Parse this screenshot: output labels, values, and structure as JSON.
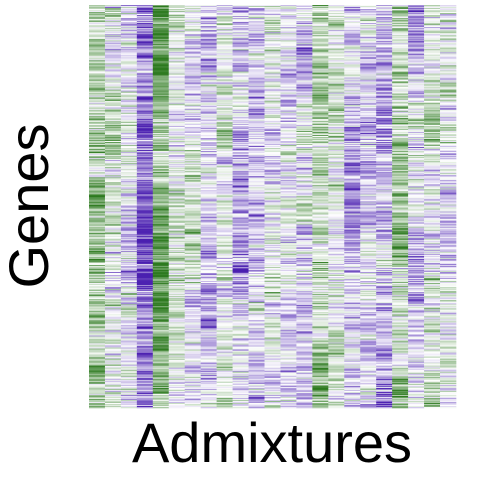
{
  "chart_data": {
    "type": "heatmap",
    "xlabel": "Admixtures",
    "ylabel": "Genes",
    "columns": 23,
    "rows": 400,
    "column_means": [
      -0.35,
      -0.15,
      0.05,
      0.7,
      -0.55,
      -0.1,
      -0.05,
      0.2,
      -0.05,
      0.3,
      0.25,
      0.0,
      0.1,
      0.15,
      -0.3,
      0.0,
      0.3,
      0.2,
      0.35,
      -0.35,
      0.25,
      -0.15,
      0.05
    ],
    "column_spread": [
      0.55,
      0.6,
      0.55,
      0.6,
      0.5,
      0.55,
      0.5,
      0.55,
      0.45,
      0.55,
      0.5,
      0.5,
      0.5,
      0.55,
      0.55,
      0.5,
      0.55,
      0.55,
      0.55,
      0.6,
      0.55,
      0.55,
      0.55
    ],
    "value_range": [
      -1,
      1
    ],
    "colormap": {
      "negative": "#2d7a1f",
      "mid": "#ffffff",
      "positive": "#4a1fb0"
    },
    "legend": "none",
    "grid": false
  }
}
